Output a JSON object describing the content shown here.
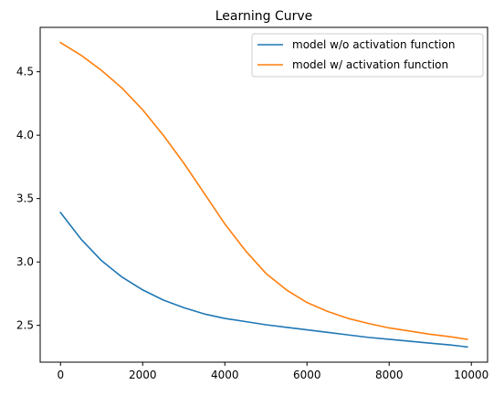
{
  "chart_data": {
    "type": "line",
    "title": "Learning Curve",
    "xlabel": "",
    "ylabel": "",
    "xlim": [
      -495,
      10395
    ],
    "ylim": [
      2.21,
      4.85
    ],
    "xticks": [
      0,
      2000,
      4000,
      6000,
      8000,
      10000
    ],
    "xtick_labels": [
      "0",
      "2000",
      "4000",
      "6000",
      "8000",
      "10000"
    ],
    "yticks": [
      2.5,
      3.0,
      3.5,
      4.0,
      4.5
    ],
    "ytick_labels": [
      "2.5",
      "3.0",
      "3.5",
      "4.0",
      "4.5"
    ],
    "grid": false,
    "legend_position": "upper right",
    "series": [
      {
        "name": "model w/o activation function",
        "color": "#1f77b4",
        "x": [
          0,
          500,
          1000,
          1500,
          2000,
          2500,
          3000,
          3500,
          4000,
          4500,
          5000,
          5500,
          6000,
          6500,
          7000,
          7500,
          8000,
          8500,
          9000,
          9500,
          9900
        ],
        "y": [
          3.39,
          3.18,
          3.01,
          2.88,
          2.78,
          2.7,
          2.64,
          2.59,
          2.555,
          2.53,
          2.505,
          2.485,
          2.465,
          2.445,
          2.425,
          2.405,
          2.39,
          2.375,
          2.36,
          2.345,
          2.33
        ]
      },
      {
        "name": "model w/ activation function",
        "color": "#ff7f0e",
        "x": [
          0,
          500,
          1000,
          1500,
          2000,
          2500,
          3000,
          3500,
          4000,
          4500,
          5000,
          5500,
          6000,
          6500,
          7000,
          7500,
          8000,
          8500,
          9000,
          9500,
          9900
        ],
        "y": [
          4.73,
          4.63,
          4.51,
          4.37,
          4.2,
          4.0,
          3.78,
          3.54,
          3.3,
          3.09,
          2.91,
          2.78,
          2.68,
          2.61,
          2.555,
          2.515,
          2.48,
          2.455,
          2.43,
          2.41,
          2.39
        ]
      }
    ]
  }
}
